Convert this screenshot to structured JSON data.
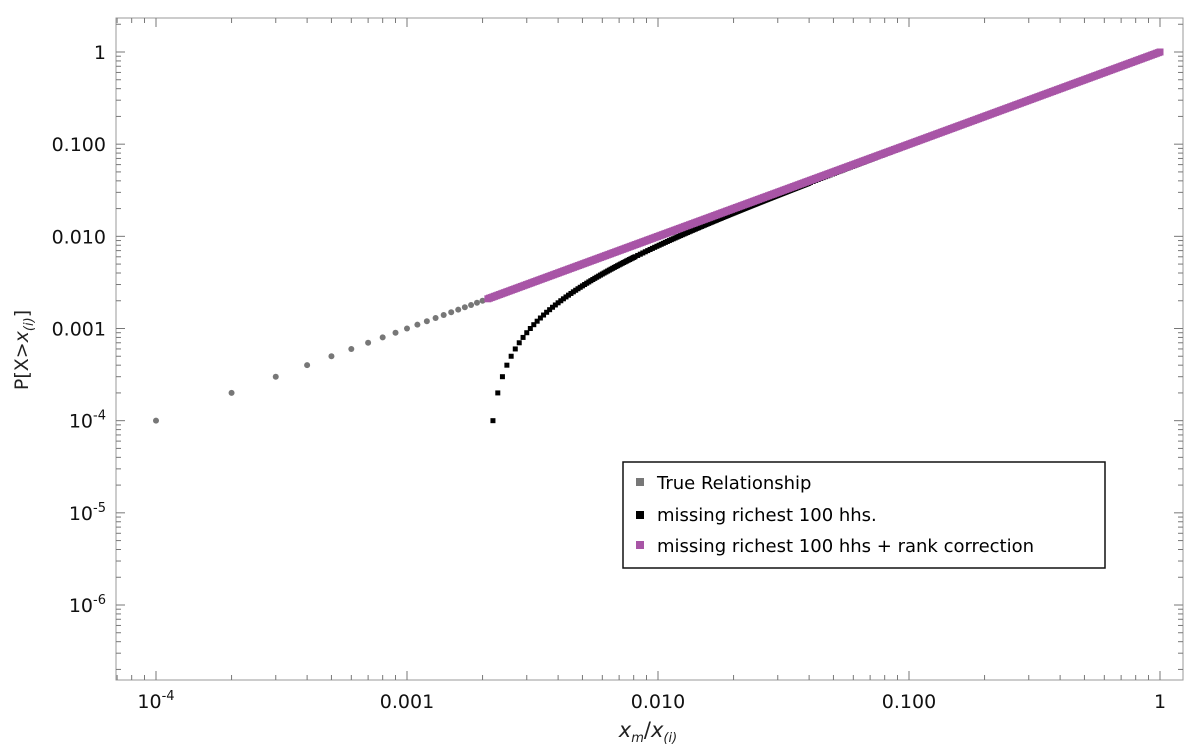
{
  "chart_data": {
    "type": "scatter",
    "title": "",
    "xlabel": "x_m/x_(i)",
    "ylabel": "P[X>x_(i)]",
    "xscale": "log",
    "yscale": "log",
    "xlim": [
      6e-05,
      1.3
    ],
    "ylim": [
      1.5e-07,
      2
    ],
    "grid": false,
    "legend_position": "lower-right",
    "x_ticks": [
      {
        "value": 0.0001,
        "base": "10",
        "exp": "-4"
      },
      {
        "value": 0.001,
        "label": "0.001"
      },
      {
        "value": 0.01,
        "label": "0.010"
      },
      {
        "value": 0.1,
        "label": "0.100"
      },
      {
        "value": 1,
        "label": "1"
      }
    ],
    "y_ticks": [
      {
        "value": 1e-06,
        "base": "10",
        "exp": "-6"
      },
      {
        "value": 1e-05,
        "base": "10",
        "exp": "-5"
      },
      {
        "value": 0.0001,
        "base": "10",
        "exp": "-4"
      },
      {
        "value": 0.001,
        "label": "0.001"
      },
      {
        "value": 0.01,
        "label": "0.010"
      },
      {
        "value": 0.1,
        "label": "0.100"
      },
      {
        "value": 1,
        "label": "1"
      }
    ],
    "series": [
      {
        "name": "True Relationship",
        "color": "#777777",
        "marker": "circle",
        "description_of_values": "P = x, sampled at x = k/N with N = 10000",
        "N": 10000,
        "x_range": [
          0.0001,
          1
        ]
      },
      {
        "name": "missing richest 100 hhs.",
        "color": "#000000",
        "marker": "square",
        "description_of_values": "P = x - m/N for x > m/N, m = 21 (vertical asymptote near x = 0.0021)",
        "N": 10000,
        "m": 21,
        "x_range": [
          0.00215,
          1
        ]
      },
      {
        "name": "missing richest 100 hhs + rank correction",
        "color": "#a855a6",
        "marker": "square",
        "description_of_values": "P = x, from x = 0.0021 to 1",
        "x_range": [
          0.0021,
          1
        ]
      }
    ]
  }
}
